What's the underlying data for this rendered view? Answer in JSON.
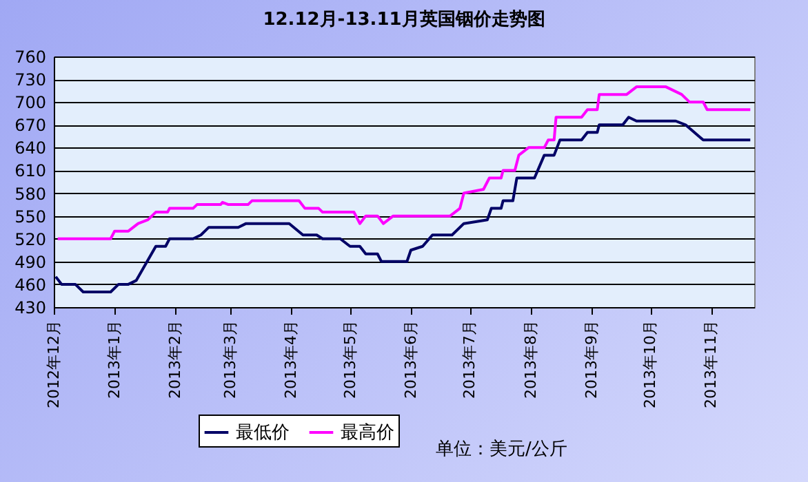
{
  "chart_data": {
    "type": "line",
    "title": "12.12月-13.11月英国铟价走势图",
    "series": [
      {
        "name": "最低价",
        "color": "#000066",
        "x": [
          "2012-12-02",
          "2012-12-05",
          "2012-12-12",
          "2012-12-16",
          "2012-12-30",
          "2013-01-03",
          "2013-01-08",
          "2013-01-12",
          "2013-01-22",
          "2013-01-27",
          "2013-01-29",
          "2013-02-10",
          "2013-02-14",
          "2013-02-18",
          "2013-03-05",
          "2013-03-09",
          "2013-03-31",
          "2013-04-07",
          "2013-04-14",
          "2013-04-17",
          "2013-04-26",
          "2013-05-01",
          "2013-05-06",
          "2013-05-09",
          "2013-05-15",
          "2013-05-17",
          "2013-05-30",
          "2013-06-01",
          "2013-06-07",
          "2013-06-12",
          "2013-06-22",
          "2013-06-28",
          "2013-07-10",
          "2013-07-12",
          "2013-07-17",
          "2013-07-18",
          "2013-07-23",
          "2013-07-25",
          "2013-08-03",
          "2013-08-08",
          "2013-08-13",
          "2013-08-16",
          "2013-08-27",
          "2013-08-30",
          "2013-09-04",
          "2013-09-05",
          "2013-09-17",
          "2013-09-20",
          "2013-09-24",
          "2013-10-14",
          "2013-10-19",
          "2013-10-28",
          "2013-11-21"
        ],
        "values": [
          470,
          460,
          460,
          450,
          450,
          460,
          460,
          465,
          510,
          510,
          520,
          520,
          525,
          535,
          535,
          540,
          540,
          525,
          525,
          520,
          520,
          510,
          510,
          500,
          500,
          490,
          490,
          505,
          510,
          525,
          525,
          540,
          545,
          560,
          560,
          570,
          570,
          600,
          600,
          630,
          630,
          650,
          650,
          660,
          660,
          670,
          670,
          680,
          675,
          675,
          670,
          650,
          650
        ]
      },
      {
        "name": "最高价",
        "color": "#ff00ff",
        "x": [
          "2012-12-03",
          "2012-12-30",
          "2013-01-01",
          "2013-01-08",
          "2013-01-13",
          "2013-01-18",
          "2013-01-22",
          "2013-01-28",
          "2013-01-29",
          "2013-02-10",
          "2013-02-12",
          "2013-02-24",
          "2013-02-25",
          "2013-02-28",
          "2013-03-10",
          "2013-03-12",
          "2013-04-05",
          "2013-04-08",
          "2013-04-15",
          "2013-04-17",
          "2013-05-03",
          "2013-05-06",
          "2013-05-09",
          "2013-05-15",
          "2013-05-18",
          "2013-05-23",
          "2013-06-21",
          "2013-06-26",
          "2013-06-28",
          "2013-07-08",
          "2013-07-11",
          "2013-07-17",
          "2013-07-18",
          "2013-07-24",
          "2013-07-26",
          "2013-07-31",
          "2013-08-08",
          "2013-08-10",
          "2013-08-13",
          "2013-08-14",
          "2013-08-27",
          "2013-08-30",
          "2013-09-04",
          "2013-09-05",
          "2013-09-19",
          "2013-09-24",
          "2013-10-09",
          "2013-10-17",
          "2013-10-21",
          "2013-10-28",
          "2013-10-30",
          "2013-11-21"
        ],
        "values": [
          520,
          520,
          530,
          530,
          540,
          545,
          555,
          555,
          560,
          560,
          565,
          565,
          568,
          565,
          565,
          570,
          570,
          560,
          560,
          555,
          555,
          540,
          550,
          550,
          540,
          550,
          550,
          560,
          580,
          585,
          600,
          600,
          610,
          610,
          630,
          640,
          640,
          650,
          650,
          680,
          680,
          690,
          690,
          710,
          710,
          720,
          720,
          710,
          700,
          700,
          690,
          690
        ]
      }
    ],
    "xlim": [
      "2012-12-01",
      "2013-11-23"
    ],
    "xticks": [
      {
        "value": "2012-12",
        "label": "2012年12月"
      },
      {
        "value": "2013-01",
        "label": "2013年1月"
      },
      {
        "value": "2013-02",
        "label": "2013年2月"
      },
      {
        "value": "2013-03",
        "label": "2013年3月"
      },
      {
        "value": "2013-04",
        "label": "2013年4月"
      },
      {
        "value": "2013-05",
        "label": "2013年5月"
      },
      {
        "value": "2013-06",
        "label": "2013年6月"
      },
      {
        "value": "2013-07",
        "label": "2013年7月"
      },
      {
        "value": "2013-08",
        "label": "2013年8月"
      },
      {
        "value": "2013-09",
        "label": "2013年9月"
      },
      {
        "value": "2013-10",
        "label": "2013年10月"
      },
      {
        "value": "2013-11",
        "label": "2013年11月"
      }
    ],
    "ylim": [
      430,
      760
    ],
    "yticks": [
      430,
      460,
      490,
      520,
      550,
      580,
      610,
      640,
      670,
      700,
      730,
      760
    ],
    "grid": "y",
    "legend": "bottom",
    "marker": "none",
    "line_style": "solid",
    "annotations": [
      "单位：美元/公斤"
    ]
  }
}
